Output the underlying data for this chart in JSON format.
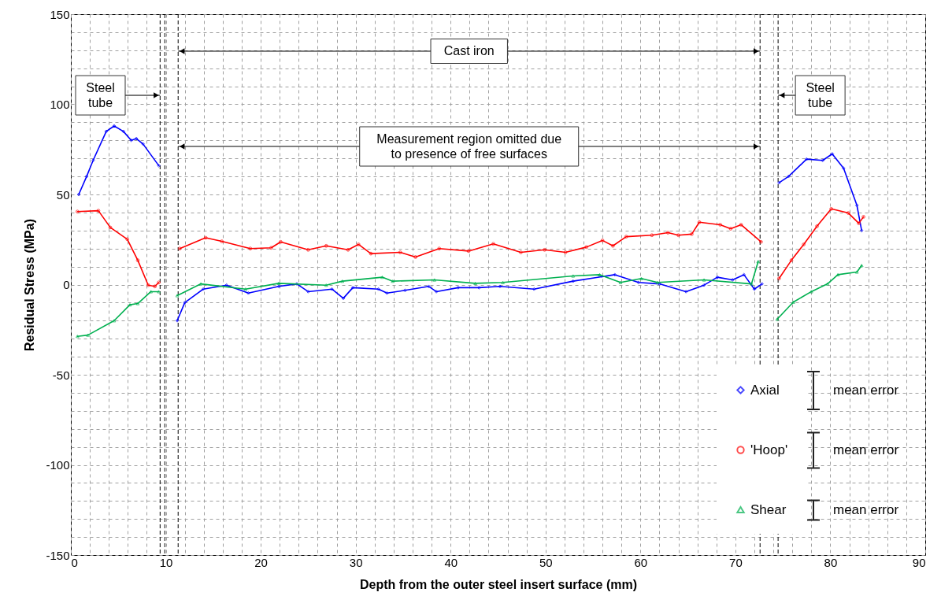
{
  "chart_data": {
    "type": "line",
    "xlabel": "Depth from the outer steel insert surface (mm)",
    "ylabel": "Residual Stress (MPa)",
    "xlim": [
      0,
      90
    ],
    "ylim": [
      -150,
      150
    ],
    "xticks": [
      0,
      {
        "value": 2,
        "label": null
      },
      {
        "value": 4,
        "label": null
      },
      {
        "value": 6,
        "label": null
      },
      {
        "value": 8,
        "label": null
      },
      10,
      {
        "value": 12,
        "label": null
      },
      {
        "value": 14,
        "label": null
      },
      {
        "value": 16,
        "label": null
      },
      {
        "value": 18,
        "label": null
      },
      20,
      {
        "value": 22,
        "label": null
      },
      {
        "value": 24,
        "label": null
      },
      {
        "value": 26,
        "label": null
      },
      {
        "value": 28,
        "label": null
      },
      30,
      {
        "value": 32,
        "label": null
      },
      {
        "value": 34,
        "label": null
      },
      {
        "value": 36,
        "label": null
      },
      {
        "value": 38,
        "label": null
      },
      40,
      {
        "value": 42,
        "label": null
      },
      {
        "value": 44,
        "label": null
      },
      {
        "value": 46,
        "label": null
      },
      {
        "value": 48,
        "label": null
      },
      50,
      {
        "value": 52,
        "label": null
      },
      {
        "value": 54,
        "label": null
      },
      {
        "value": 56,
        "label": null
      },
      {
        "value": 58,
        "label": null
      },
      60,
      {
        "value": 62,
        "label": null
      },
      {
        "value": 64,
        "label": null
      },
      {
        "value": 66,
        "label": null
      },
      {
        "value": 68,
        "label": null
      },
      70,
      {
        "value": 72,
        "label": null
      },
      {
        "value": 74,
        "label": null
      },
      {
        "value": 76,
        "label": null
      },
      {
        "value": 78,
        "label": null
      },
      80,
      {
        "value": 82,
        "label": null
      },
      {
        "value": 84,
        "label": null
      },
      {
        "value": 86,
        "label": null
      },
      {
        "value": 88,
        "label": null
      },
      90
    ],
    "yticks": [
      -150,
      {
        "value": -140,
        "label": null
      },
      {
        "value": -130,
        "label": null
      },
      {
        "value": -120,
        "label": null
      },
      {
        "value": -110,
        "label": null
      },
      -100,
      {
        "value": -90,
        "label": null
      },
      {
        "value": -80,
        "label": null
      },
      {
        "value": -70,
        "label": null
      },
      {
        "value": -60,
        "label": null
      },
      -50,
      {
        "value": -40,
        "label": null
      },
      {
        "value": -30,
        "label": null
      },
      {
        "value": -20,
        "label": null
      },
      {
        "value": -10,
        "label": null
      },
      0,
      {
        "value": 10,
        "label": null
      },
      {
        "value": 20,
        "label": null
      },
      {
        "value": 30,
        "label": null
      },
      {
        "value": 40,
        "label": null
      },
      50,
      {
        "value": 60,
        "label": null
      },
      {
        "value": 70,
        "label": null
      },
      {
        "value": 80,
        "label": null
      },
      {
        "value": 90,
        "label": null
      },
      100,
      {
        "value": 110,
        "label": null
      },
      {
        "value": 120,
        "label": null
      },
      {
        "value": 130,
        "label": null
      },
      {
        "value": 140,
        "label": null
      },
      150
    ],
    "grid": true,
    "legend": "bottom right",
    "line_style": "solid",
    "series": [
      {
        "name": "Axial",
        "color": "#0000ff",
        "marker": "diamond",
        "x": [
          0.83,
          1.66,
          2.35,
          3.73,
          4.56,
          5.53,
          6.36,
          6.9,
          7.6,
          9.26,
          10.3,
          11.2,
          12,
          13.95,
          16.4,
          18.7,
          21.9,
          23.8,
          25,
          27.5,
          28.7,
          29.7,
          32.4,
          33.3,
          35.2,
          37.7,
          38.5,
          40.8,
          43,
          45.2,
          48.8,
          52.9,
          57.3,
          59.8,
          62,
          64.8,
          66.7,
          68.1,
          69.7,
          70.9,
          72,
          72.8,
          73.6,
          74.6,
          75.6,
          77.5,
          79.2,
          80.2,
          81.4,
          82.8,
          83.3
        ],
        "values": [
          50,
          60,
          69,
          85,
          88,
          85,
          80,
          81,
          78,
          66,
          null,
          -20,
          -10,
          -2.5,
          -0.3,
          -4.7,
          -1,
          0.4,
          -3.9,
          -2.5,
          -7.6,
          -1.7,
          -2.5,
          -4.7,
          -3.2,
          -1,
          -3.9,
          -1.7,
          -1.7,
          -1,
          -2.5,
          1.9,
          5.5,
          1.2,
          0.4,
          -3.9,
          -0.3,
          4.1,
          2.6,
          5.5,
          -2.5,
          0.4,
          null,
          56.5,
          60,
          69.6,
          68.9,
          72.5,
          64.5,
          44,
          30
        ]
      },
      {
        "name": "'Hoop'",
        "color": "#ff0000",
        "marker": "circle",
        "x": [
          0.69,
          2.9,
          4.15,
          5.94,
          7.05,
          8.15,
          8.85,
          9.26,
          10.3,
          11.47,
          14.2,
          15.9,
          18.9,
          21.1,
          22.1,
          25,
          26.9,
          29.2,
          30.3,
          31.6,
          34.7,
          36.3,
          38.8,
          41.9,
          44.5,
          47.4,
          49.9,
          52.1,
          54.3,
          56,
          57.1,
          58.5,
          61.2,
          62.9,
          64,
          65.4,
          66.2,
          68.4,
          69.5,
          70.6,
          72.7,
          73.6,
          74.6,
          75.9,
          77.2,
          78.6,
          80.1,
          81.9,
          83,
          83.5
        ],
        "values": [
          40.5,
          41,
          31.7,
          25.2,
          13.5,
          -0.3,
          -1,
          1.2,
          null,
          20,
          26,
          24,
          20,
          20.4,
          23.7,
          19.3,
          21.5,
          19.3,
          22.3,
          17.2,
          17.9,
          15.3,
          20,
          18.6,
          22.6,
          17.9,
          19.3,
          17.9,
          20.8,
          24.5,
          21.5,
          26.6,
          27.4,
          28.8,
          27.4,
          28,
          34.6,
          33.2,
          31,
          33.2,
          23.7,
          null,
          3.4,
          13.5,
          22.3,
          32.4,
          42,
          39.7,
          34,
          37.6
        ]
      },
      {
        "name": "Shear",
        "color": "#00b050",
        "marker": "triangle",
        "x": [
          0.69,
          1.8,
          4.56,
          6.22,
          7.05,
          8.43,
          9.26,
          10.3,
          11.2,
          13.7,
          18.4,
          21.9,
          26.9,
          28.6,
          32.8,
          33.9,
          38.3,
          42.6,
          45.5,
          52.9,
          55.7,
          57.9,
          60.1,
          61.8,
          66.7,
          71.7,
          72.4,
          73.4,
          74.4,
          76.1,
          78,
          79.7,
          80.8,
          82.8,
          83.3
        ],
        "values": [
          -28.7,
          -28,
          -20,
          -11.2,
          -10.5,
          -3.9,
          -3.9,
          null,
          -6.1,
          0.4,
          -2.5,
          0.7,
          -0.3,
          1.9,
          4.1,
          1.9,
          2.6,
          0.7,
          1.2,
          4.8,
          5.5,
          1.2,
          3.4,
          1.2,
          2.6,
          0.4,
          12.8,
          null,
          -19.2,
          -9.7,
          -3.9,
          0.4,
          5.5,
          7,
          10.6
        ]
      }
    ],
    "ref_lines": [
      {
        "axis": "x",
        "value": 9.4,
        "line_style": "dashed",
        "color": "#000000"
      },
      {
        "axis": "x",
        "value": 9.9,
        "line_style": "dashed",
        "color": "#000000"
      },
      {
        "axis": "x",
        "value": 11.3,
        "line_style": "dashed",
        "color": "#000000"
      },
      {
        "axis": "x",
        "value": 72.6,
        "line_style": "dashed",
        "color": "#000000"
      },
      {
        "axis": "x",
        "value": 74.5,
        "line_style": "dashed",
        "color": "#000000"
      }
    ],
    "annotations": [
      {
        "text": "Steel tube",
        "x": 9.4,
        "y": 105
      },
      "Cast iron",
      {
        "text": "Steel tube",
        "x": 74.5,
        "y": 105
      },
      "Measurement region omitted due to presence of free surfaces",
      "mean error",
      "mean error",
      "mean error"
    ]
  }
}
